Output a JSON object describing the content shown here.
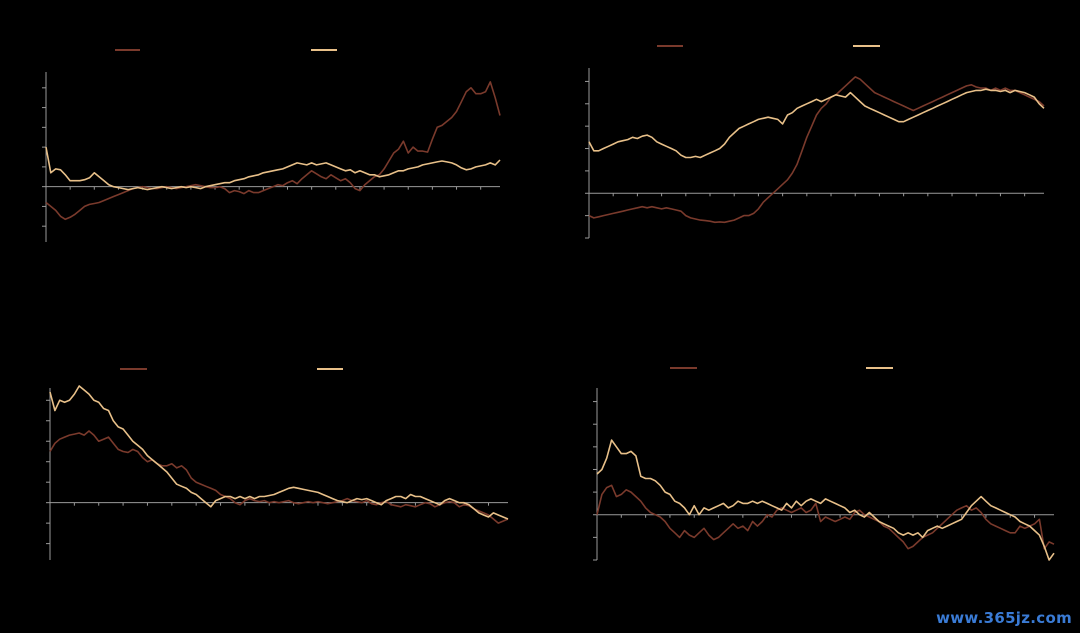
{
  "colors": {
    "series_dark": "#7a3a2c",
    "series_light": "#e8c089",
    "axis": "#9a9a9a",
    "background": "#000000"
  },
  "watermark": "www.365jz.com",
  "chart_data": [
    {
      "type": "line",
      "ylim": [
        -2.8,
        5.8
      ],
      "n_points": 95,
      "series": [
        {
          "color": "#7a3a2c",
          "values": [
            -0.8,
            -1.0,
            -1.2,
            -1.5,
            -1.65,
            -1.55,
            -1.4,
            -1.2,
            -1.0,
            -0.9,
            -0.85,
            -0.8,
            -0.7,
            -0.6,
            -0.5,
            -0.4,
            -0.3,
            -0.2,
            -0.1,
            -0.05,
            0,
            -0.05,
            -0.1,
            -0.1,
            -0.05,
            0,
            -0.05,
            -0.1,
            -0.05,
            0,
            0.05,
            0.1,
            0.05,
            0,
            -0.05,
            -0.05,
            0,
            -0.1,
            -0.3,
            -0.2,
            -0.25,
            -0.35,
            -0.2,
            -0.3,
            -0.3,
            -0.2,
            -0.1,
            0,
            0.1,
            0.05,
            0.2,
            0.3,
            0.15,
            0.4,
            0.6,
            0.8,
            0.65,
            0.5,
            0.4,
            0.6,
            0.45,
            0.3,
            0.4,
            0.2,
            -0.1,
            -0.2,
            0.1,
            0.3,
            0.5,
            0.6,
            0.9,
            1.3,
            1.7,
            1.9,
            2.3,
            1.7,
            2.0,
            1.8,
            1.8,
            1.75,
            2.4,
            3.0,
            3.1,
            3.3,
            3.5,
            3.8,
            4.3,
            4.8,
            5.0,
            4.7,
            4.7,
            4.8,
            5.3,
            4.5,
            3.6
          ]
        },
        {
          "color": "#e8c089",
          "values": [
            2.0,
            0.7,
            0.9,
            0.85,
            0.6,
            0.3,
            0.3,
            0.3,
            0.35,
            0.45,
            0.7,
            0.5,
            0.3,
            0.1,
            0,
            -0.05,
            -0.1,
            -0.15,
            -0.1,
            -0.05,
            -0.1,
            -0.15,
            -0.1,
            -0.05,
            0,
            -0.05,
            -0.1,
            -0.05,
            0,
            -0.05,
            0,
            -0.05,
            -0.1,
            0,
            0.05,
            0.1,
            0.15,
            0.2,
            0.2,
            0.3,
            0.35,
            0.4,
            0.5,
            0.55,
            0.6,
            0.7,
            0.75,
            0.8,
            0.85,
            0.9,
            1.0,
            1.1,
            1.2,
            1.15,
            1.1,
            1.2,
            1.1,
            1.15,
            1.2,
            1.1,
            1.0,
            0.9,
            0.8,
            0.85,
            0.7,
            0.8,
            0.7,
            0.6,
            0.6,
            0.5,
            0.55,
            0.6,
            0.7,
            0.8,
            0.8,
            0.9,
            0.95,
            1.0,
            1.1,
            1.15,
            1.2,
            1.25,
            1.3,
            1.25,
            1.2,
            1.1,
            0.95,
            0.85,
            0.9,
            1.0,
            1.05,
            1.1,
            1.2,
            1.1,
            1.35
          ]
        }
      ]
    },
    {
      "type": "line",
      "ylim": [
        -2.0,
        5.6
      ],
      "n_points": 95,
      "series": [
        {
          "color": "#7a3a2c",
          "values": [
            -1.0,
            -1.1,
            -1.05,
            -1.0,
            -0.95,
            -0.9,
            -0.85,
            -0.8,
            -0.75,
            -0.7,
            -0.65,
            -0.6,
            -0.65,
            -0.6,
            -0.65,
            -0.7,
            -0.65,
            -0.7,
            -0.75,
            -0.8,
            -1.0,
            -1.1,
            -1.15,
            -1.2,
            -1.22,
            -1.25,
            -1.3,
            -1.28,
            -1.3,
            -1.25,
            -1.2,
            -1.1,
            -1.0,
            -1.0,
            -0.9,
            -0.7,
            -0.4,
            -0.2,
            0,
            0.2,
            0.4,
            0.6,
            0.9,
            1.3,
            1.9,
            2.5,
            3.0,
            3.5,
            3.8,
            4.0,
            4.3,
            4.4,
            4.6,
            4.8,
            5.0,
            5.2,
            5.1,
            4.9,
            4.7,
            4.5,
            4.4,
            4.3,
            4.2,
            4.1,
            4.0,
            3.9,
            3.8,
            3.7,
            3.8,
            3.9,
            4.0,
            4.1,
            4.2,
            4.3,
            4.4,
            4.5,
            4.6,
            4.7,
            4.8,
            4.85,
            4.75,
            4.7,
            4.7,
            4.6,
            4.7,
            4.6,
            4.7,
            4.6,
            4.6,
            4.5,
            4.4,
            4.3,
            4.2,
            4.1,
            3.9
          ]
        },
        {
          "color": "#e8c089",
          "values": [
            2.3,
            1.9,
            1.9,
            2.0,
            2.1,
            2.2,
            2.3,
            2.35,
            2.4,
            2.5,
            2.45,
            2.55,
            2.6,
            2.5,
            2.3,
            2.2,
            2.1,
            2.0,
            1.9,
            1.7,
            1.6,
            1.6,
            1.65,
            1.6,
            1.7,
            1.8,
            1.9,
            2.0,
            2.2,
            2.5,
            2.7,
            2.9,
            3.0,
            3.1,
            3.2,
            3.3,
            3.35,
            3.4,
            3.35,
            3.3,
            3.1,
            3.5,
            3.6,
            3.8,
            3.9,
            4.0,
            4.1,
            4.2,
            4.1,
            4.2,
            4.3,
            4.4,
            4.35,
            4.3,
            4.5,
            4.3,
            4.1,
            3.9,
            3.8,
            3.7,
            3.6,
            3.5,
            3.4,
            3.3,
            3.2,
            3.2,
            3.3,
            3.4,
            3.5,
            3.6,
            3.7,
            3.8,
            3.9,
            4.0,
            4.1,
            4.2,
            4.3,
            4.4,
            4.5,
            4.55,
            4.6,
            4.6,
            4.65,
            4.6,
            4.6,
            4.55,
            4.6,
            4.5,
            4.6,
            4.55,
            4.5,
            4.4,
            4.3,
            4.0,
            3.8
          ]
        }
      ]
    },
    {
      "type": "line",
      "ylim": [
        -2.8,
        5.6
      ],
      "n_points": 95,
      "series": [
        {
          "color": "#7a3a2c",
          "values": [
            2.5,
            2.9,
            3.1,
            3.2,
            3.3,
            3.35,
            3.4,
            3.3,
            3.5,
            3.3,
            3.0,
            3.1,
            3.2,
            2.9,
            2.6,
            2.5,
            2.45,
            2.6,
            2.5,
            2.2,
            2.0,
            2.1,
            1.9,
            1.8,
            1.8,
            1.9,
            1.7,
            1.8,
            1.6,
            1.2,
            1.0,
            0.9,
            0.8,
            0.7,
            0.6,
            0.4,
            0.3,
            0.2,
            0,
            -0.1,
            0.1,
            0.2,
            0.1,
            0.05,
            0.1,
            0,
            0.05,
            0,
            0.05,
            0.1,
            0,
            -0.05,
            0,
            0.05,
            0,
            0.05,
            0,
            -0.05,
            0,
            0.05,
            0.1,
            0.2,
            0.1,
            0.05,
            0,
            0.1,
            -0.05,
            -0.1,
            0,
            0.05,
            -0.1,
            -0.15,
            -0.2,
            -0.1,
            -0.15,
            -0.2,
            -0.1,
            0,
            -0.05,
            -0.2,
            -0.1,
            0,
            0.05,
            0,
            -0.2,
            -0.1,
            -0.15,
            -0.3,
            -0.4,
            -0.5,
            -0.6,
            -0.8,
            -1.0,
            -0.9,
            -0.8
          ]
        },
        {
          "color": "#e8c089",
          "values": [
            5.4,
            4.5,
            5.0,
            4.9,
            5.0,
            5.3,
            5.7,
            5.5,
            5.3,
            5.0,
            4.9,
            4.6,
            4.5,
            4.0,
            3.7,
            3.6,
            3.3,
            3.0,
            2.8,
            2.6,
            2.3,
            2.1,
            1.9,
            1.7,
            1.5,
            1.2,
            0.9,
            0.8,
            0.7,
            0.5,
            0.4,
            0.2,
            0,
            -0.2,
            0.1,
            0.2,
            0.3,
            0.3,
            0.2,
            0.3,
            0.2,
            0.3,
            0.2,
            0.3,
            0.3,
            0.35,
            0.4,
            0.5,
            0.6,
            0.7,
            0.75,
            0.7,
            0.65,
            0.6,
            0.55,
            0.5,
            0.4,
            0.3,
            0.2,
            0.1,
            0.05,
            0,
            0.1,
            0.2,
            0.15,
            0.2,
            0.1,
            0,
            -0.1,
            0.1,
            0.2,
            0.3,
            0.3,
            0.2,
            0.4,
            0.3,
            0.3,
            0.2,
            0.1,
            0,
            -0.1,
            0.1,
            0.2,
            0.1,
            0,
            0,
            -0.1,
            -0.3,
            -0.5,
            -0.6,
            -0.7,
            -0.5,
            -0.6,
            -0.7,
            -0.8
          ]
        }
      ]
    },
    {
      "type": "line",
      "ylim": [
        -2.0,
        5.6
      ],
      "n_points": 95,
      "series": [
        {
          "color": "#7a3a2c",
          "values": [
            0.0,
            0.9,
            1.2,
            1.3,
            0.8,
            0.9,
            1.1,
            1.0,
            0.8,
            0.6,
            0.3,
            0.1,
            0,
            -0.1,
            -0.3,
            -0.6,
            -0.8,
            -1.0,
            -0.7,
            -0.9,
            -1.0,
            -0.8,
            -0.6,
            -0.9,
            -1.1,
            -1.0,
            -0.8,
            -0.6,
            -0.4,
            -0.6,
            -0.5,
            -0.7,
            -0.3,
            -0.5,
            -0.3,
            0,
            -0.1,
            0.2,
            0.3,
            0.2,
            0.1,
            0.2,
            0.3,
            0.1,
            0.2,
            0.5,
            -0.3,
            -0.1,
            -0.2,
            -0.3,
            -0.2,
            -0.1,
            -0.2,
            0.1,
            0.2,
            0,
            -0.1,
            -0.2,
            -0.3,
            -0.5,
            -0.6,
            -0.8,
            -1.0,
            -1.2,
            -1.5,
            -1.4,
            -1.2,
            -1.0,
            -0.9,
            -0.8,
            -0.6,
            -0.4,
            -0.2,
            0,
            0.2,
            0.3,
            0.4,
            0.2,
            0.3,
            0.1,
            -0.2,
            -0.4,
            -0.5,
            -0.6,
            -0.7,
            -0.8,
            -0.8,
            -0.5,
            -0.6,
            -0.5,
            -0.4,
            -0.2,
            -1.5,
            -1.2,
            -1.3
          ]
        },
        {
          "color": "#e8c089",
          "values": [
            1.8,
            2.0,
            2.5,
            3.3,
            3.0,
            2.7,
            2.7,
            2.8,
            2.6,
            1.7,
            1.6,
            1.6,
            1.5,
            1.3,
            1.0,
            0.9,
            0.6,
            0.5,
            0.3,
            0.0,
            0.4,
            0.0,
            0.3,
            0.2,
            0.3,
            0.4,
            0.5,
            0.3,
            0.4,
            0.6,
            0.5,
            0.5,
            0.6,
            0.5,
            0.6,
            0.5,
            0.4,
            0.3,
            0.2,
            0.5,
            0.3,
            0.6,
            0.4,
            0.6,
            0.7,
            0.6,
            0.5,
            0.7,
            0.6,
            0.5,
            0.4,
            0.3,
            0.1,
            0.2,
            0.0,
            -0.1,
            0.1,
            -0.1,
            -0.3,
            -0.4,
            -0.5,
            -0.6,
            -0.8,
            -0.9,
            -0.8,
            -0.9,
            -0.8,
            -1.0,
            -0.7,
            -0.6,
            -0.5,
            -0.6,
            -0.5,
            -0.4,
            -0.3,
            -0.2,
            0.1,
            0.4,
            0.6,
            0.8,
            0.6,
            0.4,
            0.3,
            0.2,
            0.1,
            0,
            -0.1,
            -0.3,
            -0.4,
            -0.5,
            -0.7,
            -0.9,
            -1.4,
            -2.0,
            -1.7
          ]
        }
      ]
    }
  ]
}
